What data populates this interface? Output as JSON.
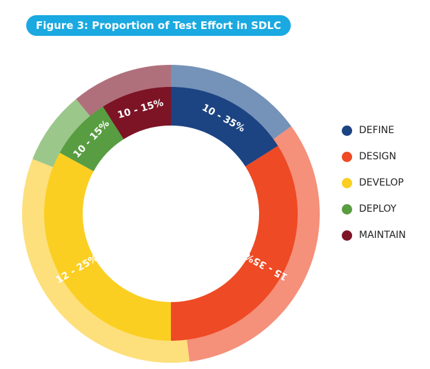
{
  "header": {
    "title": "Figure 3: Proportion of Test Effort in SDLC"
  },
  "chart_data": {
    "type": "pie",
    "title": "Figure 3: Proportion of Test Effort in SDLC",
    "categories": [
      "DEFINE",
      "DESIGN",
      "DEVELOP",
      "DEPLOY",
      "MAINTAIN"
    ],
    "ranges": [
      "10 - 35%",
      "15 - 35%",
      "12 - 25%",
      "10 - 15%",
      "10 - 15%"
    ],
    "outer_ring_percent": [
      15,
      33,
      33,
      8,
      11
    ],
    "inner_ring_percent": [
      16,
      34,
      33,
      8,
      9
    ],
    "colors": [
      "#1c4482",
      "#ee4a25",
      "#fbcf22",
      "#589d41",
      "#7d1426"
    ],
    "light_colors": [
      "#7592b9",
      "#f5907a",
      "#fde07c",
      "#9bc78b",
      "#b0707b"
    ],
    "legend_position": "right"
  }
}
